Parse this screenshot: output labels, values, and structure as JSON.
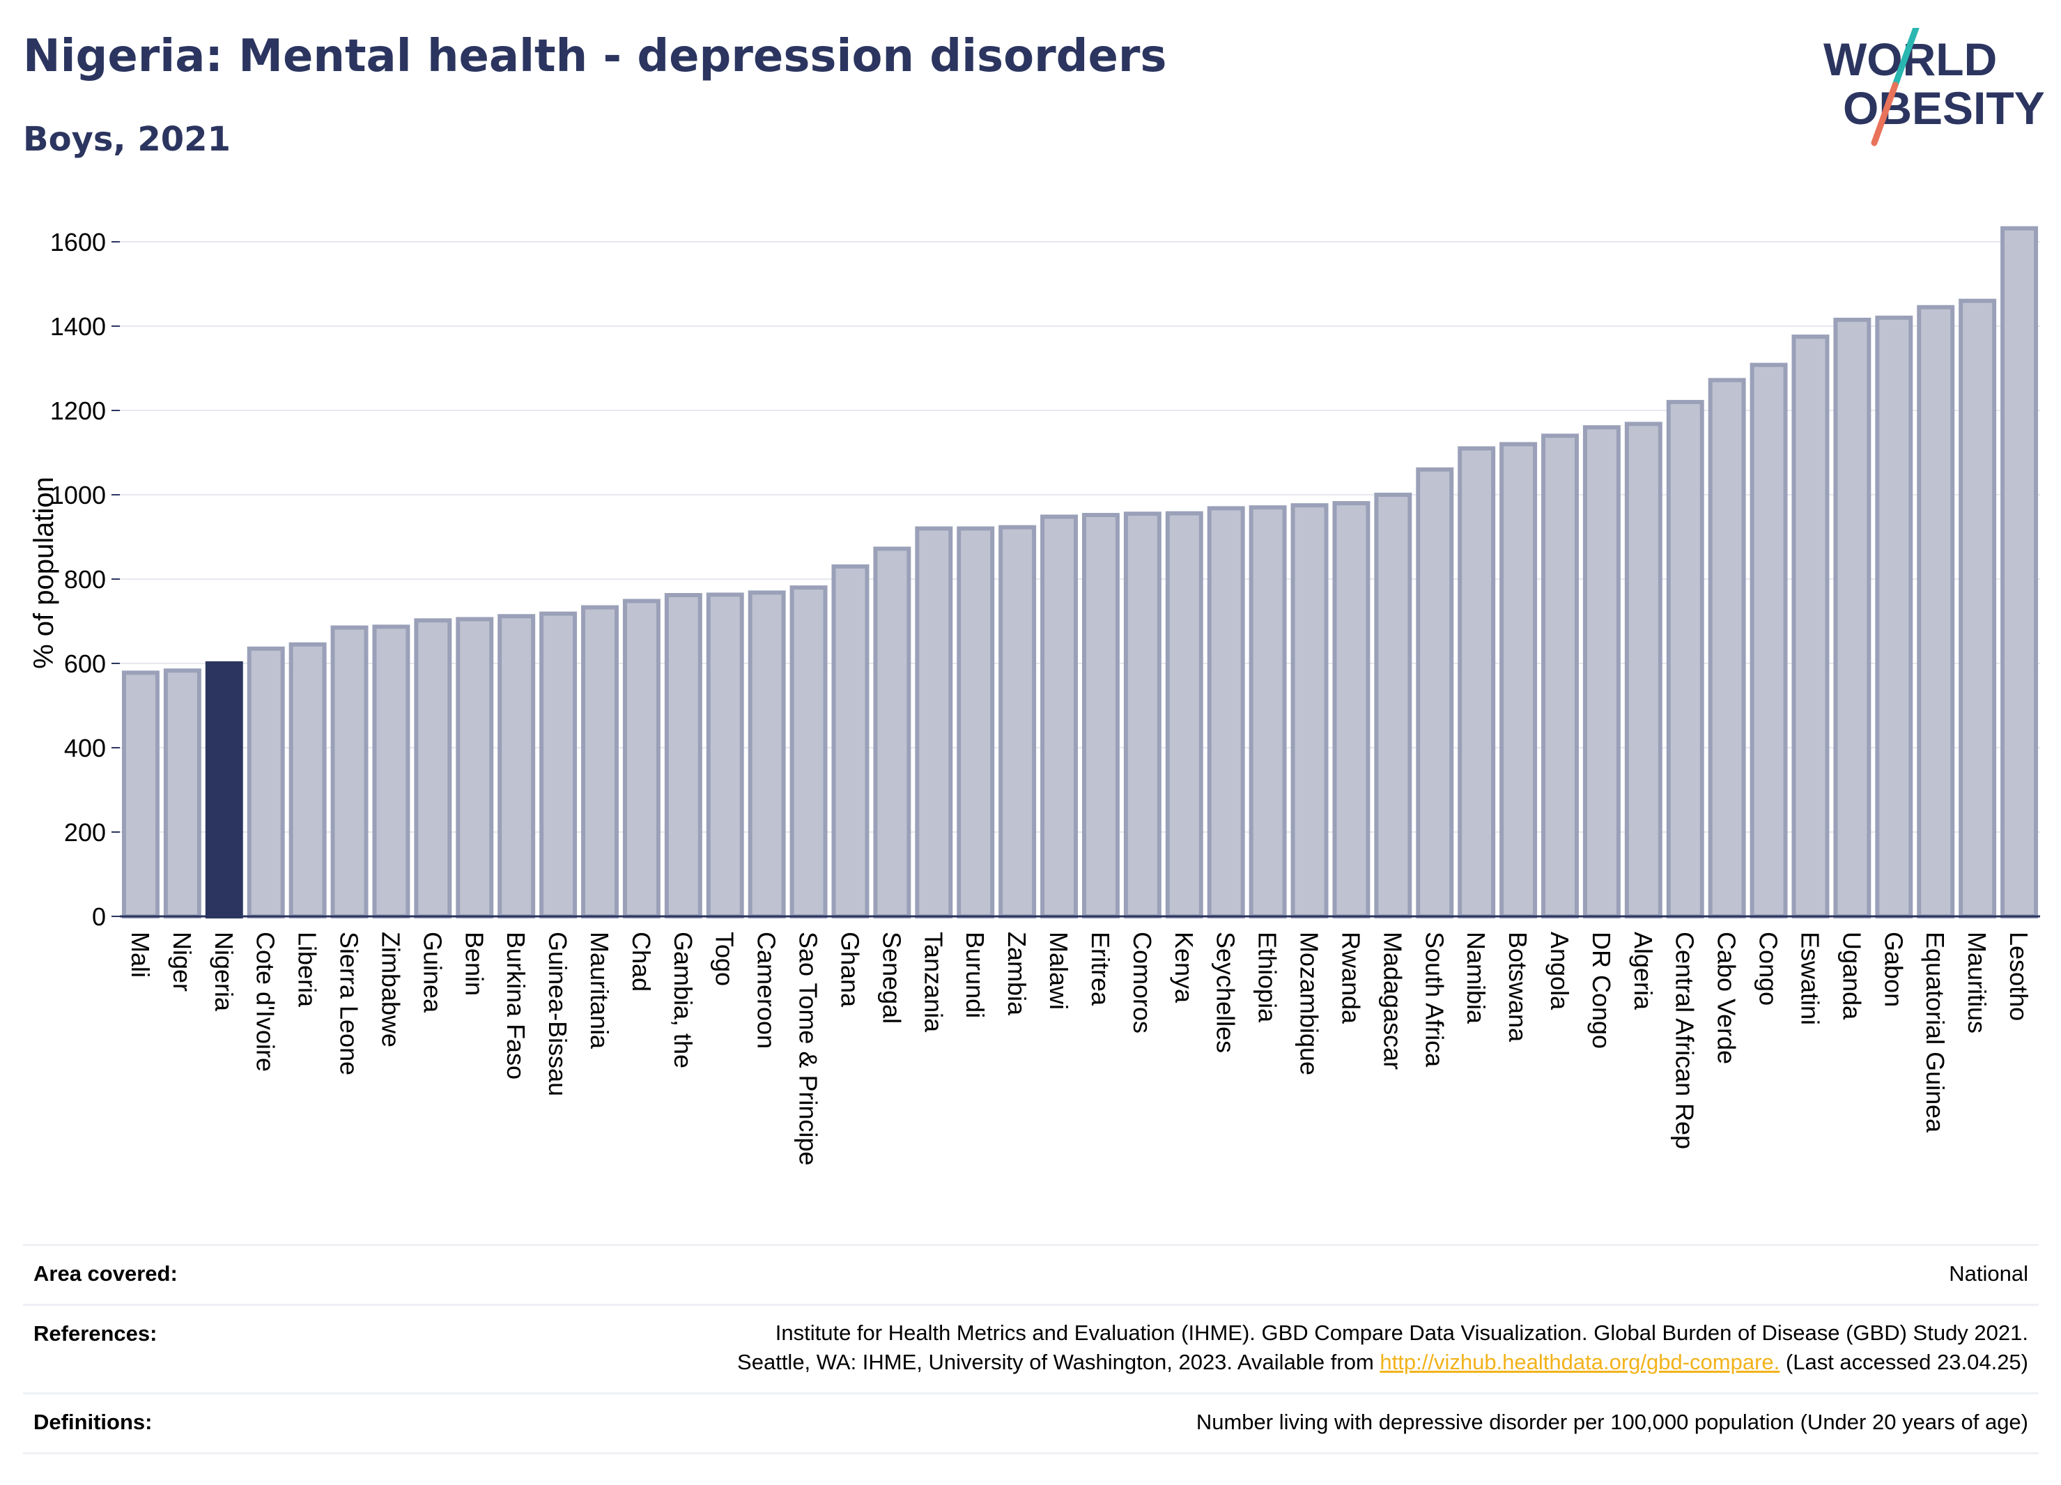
{
  "header": {
    "title": "Nigeria: Mental health - depression disorders",
    "subtitle": "Boys, 2021"
  },
  "logo": {
    "line1": "WORLD",
    "line2": "OBESITY",
    "colors": {
      "text": "#2b355f",
      "slash_top": "#2ab7b1",
      "slash_bottom": "#e8735a"
    }
  },
  "colors": {
    "bar_default": "#bfc3d1",
    "bar_default_stroke": "#9aa0b8",
    "bar_highlight": "#2b355f",
    "grid": "#e6e8ee",
    "axis": "#2b355f"
  },
  "chart_data": {
    "type": "bar",
    "title": "Nigeria: Mental health - depression disorders",
    "subtitle": "Boys, 2021",
    "xlabel": "",
    "ylabel": "% of population",
    "ylim": [
      0,
      1700
    ],
    "yticks": [
      0,
      200,
      400,
      600,
      800,
      1000,
      1200,
      1400,
      1600
    ],
    "grid": true,
    "highlight": "Nigeria",
    "categories": [
      "Mali",
      "Niger",
      "Nigeria",
      "Cote d'Ivoire",
      "Liberia",
      "Sierra Leone",
      "Zimbabwe",
      "Guinea",
      "Benin",
      "Burkina Faso",
      "Guinea-Bissau",
      "Mauritania",
      "Chad",
      "Gambia, the",
      "Togo",
      "Cameroon",
      "Sao Tome & Principe",
      "Ghana",
      "Senegal",
      "Tanzania",
      "Burundi",
      "Zambia",
      "Malawi",
      "Eritrea",
      "Comoros",
      "Kenya",
      "Seychelles",
      "Ethiopia",
      "Mozambique",
      "Rwanda",
      "Madagascar",
      "South Africa",
      "Namibia",
      "Botswana",
      "Angola",
      "DR Congo",
      "Algeria",
      "Central African Rep",
      "Cabo Verde",
      "Congo",
      "Eswatini",
      "Uganda",
      "Gabon",
      "Equatorial Guinea",
      "Mauritius",
      "Lesotho"
    ],
    "values": [
      578,
      583,
      600,
      635,
      645,
      685,
      687,
      702,
      705,
      712,
      718,
      733,
      748,
      762,
      763,
      768,
      780,
      830,
      872,
      920,
      920,
      923,
      948,
      952,
      955,
      956,
      968,
      970,
      975,
      980,
      1000,
      1060,
      1110,
      1120,
      1140,
      1160,
      1168,
      1220,
      1272,
      1308,
      1375,
      1415,
      1420,
      1445,
      1460,
      1632
    ]
  },
  "footer": {
    "area_label": "Area covered:",
    "area_value": "National",
    "references_label": "References:",
    "references_line1": "Institute for Health Metrics and Evaluation (IHME). GBD Compare Data Visualization. Global Burden of Disease (GBD) Study 2021.",
    "references_line2_prefix": "Seattle, WA: IHME, University of Washington, 2023. Available from ",
    "references_link": "http://vizhub.healthdata.org/gbd-compare.",
    "references_line2_suffix": " (Last accessed 23.04.25)",
    "definitions_label": "Definitions:",
    "definitions_value": "Number living with depressive disorder per 100,000 population (Under 20 years of age)"
  }
}
